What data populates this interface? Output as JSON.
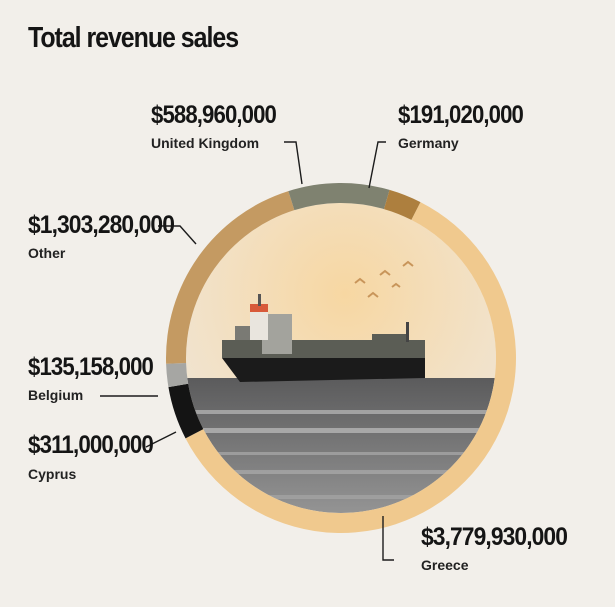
{
  "chart_data": {
    "type": "pie",
    "title": "Total revenue sales",
    "slices": [
      {
        "label": "Greece",
        "value": 3779930000,
        "value_label": "$3,779,930,000",
        "color": "#f0c98e"
      },
      {
        "label": "Cyprus",
        "value": 311000000,
        "value_label": "$311,000,000",
        "color": "#141414"
      },
      {
        "label": "Belgium",
        "value": 135158000,
        "value_label": "$135,158,000",
        "color": "#a6a6a3"
      },
      {
        "label": "Other",
        "value": 1303280000,
        "value_label": "$1,303,280,000",
        "color": "#c49a62"
      },
      {
        "label": "United Kingdom",
        "value": 588960000,
        "value_label": "$588,960,000",
        "color": "#7f8270"
      },
      {
        "label": "Germany",
        "value": 191020000,
        "value_label": "$191,020,000",
        "color": "#ad7f3e"
      }
    ]
  }
}
